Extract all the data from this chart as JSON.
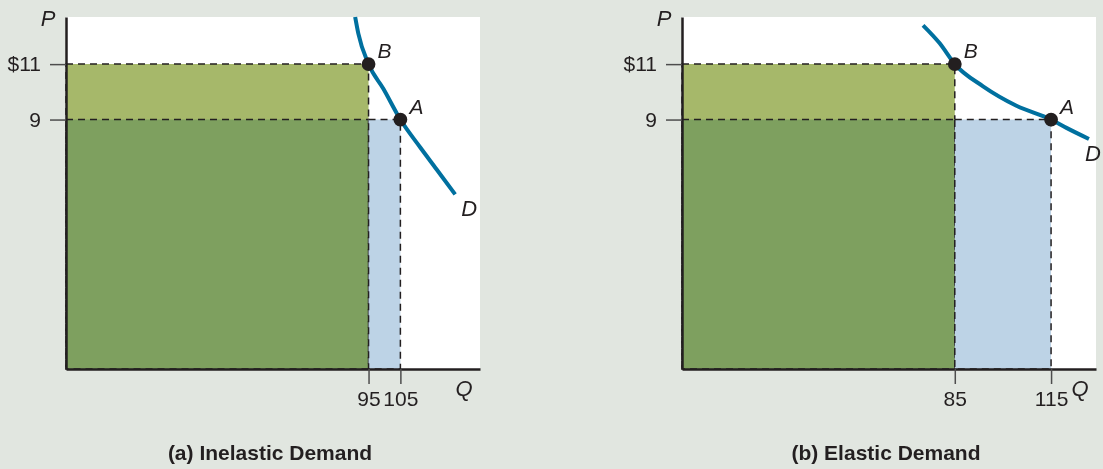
{
  "chart_data": [
    {
      "type": "line",
      "title": "(a) Inelastic Demand",
      "xlabel": "Q",
      "ylabel": "P",
      "xlim": [
        0,
        130
      ],
      "ylim": [
        0,
        12.7
      ],
      "xticks": [
        95,
        105
      ],
      "yticks": [
        {
          "value": 11,
          "label": "$11"
        },
        9
      ],
      "series": [
        {
          "type": "area",
          "color": "#a6b86a",
          "line_style": "dashed",
          "x": [
            0,
            95
          ],
          "values": [
            11,
            11
          ]
        },
        {
          "type": "area",
          "color": "#7ea05f",
          "line_style": "dashed",
          "x": [
            0,
            95
          ],
          "values": [
            9,
            9
          ]
        },
        {
          "type": "area",
          "color": "#bdd3e6",
          "line_style": "dashed",
          "x": [
            95,
            105
          ],
          "values": [
            9,
            9
          ]
        },
        {
          "type": "line",
          "name": "D",
          "color": "#00709f",
          "x": [
            90.8,
            91.8,
            95,
            99.7,
            105,
            111.2,
            116.4,
            122.2
          ],
          "values": [
            12.7,
            12.1,
            11,
            10.1,
            9,
            8,
            7.2,
            6.3
          ]
        },
        {
          "type": "scatter",
          "color": "#231f20",
          "marker": "circle",
          "x": [
            95,
            105
          ],
          "values": [
            11,
            9
          ]
        }
      ],
      "annotations": [
        {
          "text": "B",
          "x": 95,
          "y": 11
        },
        {
          "text": "A",
          "x": 105,
          "y": 9
        }
      ]
    },
    {
      "type": "line",
      "title": "(b) Elastic Demand",
      "xlabel": "Q",
      "ylabel": "P",
      "xlim": [
        0,
        129
      ],
      "ylim": [
        0,
        12.7
      ],
      "xticks": [
        85,
        115
      ],
      "yticks": [
        {
          "value": 11,
          "label": "$11"
        },
        9
      ],
      "series": [
        {
          "type": "area",
          "color": "#a6b86a",
          "line_style": "dashed",
          "x": [
            0,
            85
          ],
          "values": [
            11,
            11
          ]
        },
        {
          "type": "area",
          "color": "#7ea05f",
          "line_style": "dashed",
          "x": [
            0,
            85
          ],
          "values": [
            9,
            9
          ]
        },
        {
          "type": "area",
          "color": "#bdd3e6",
          "line_style": "dashed",
          "x": [
            85,
            115
          ],
          "values": [
            9,
            9
          ]
        },
        {
          "type": "line",
          "name": "D",
          "color": "#00709f",
          "x": [
            75.1,
            80.3,
            85,
            93.8,
            104.2,
            115,
            119.8,
            126.8
          ],
          "values": [
            12.4,
            11.75,
            11,
            10.2,
            9.5,
            9,
            8.7,
            8.3
          ]
        },
        {
          "type": "scatter",
          "color": "#231f20",
          "marker": "circle",
          "x": [
            85,
            115
          ],
          "values": [
            11,
            9
          ]
        }
      ],
      "annotations": [
        {
          "text": "B",
          "x": 85,
          "y": 11
        },
        {
          "text": "A",
          "x": 115,
          "y": 9
        }
      ]
    }
  ]
}
